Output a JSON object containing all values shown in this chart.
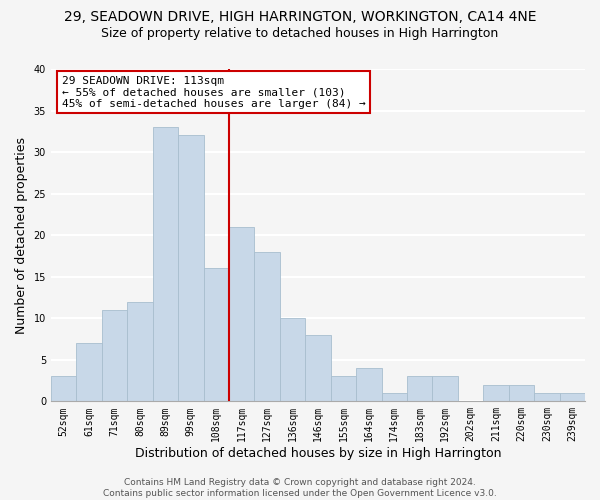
{
  "title": "29, SEADOWN DRIVE, HIGH HARRINGTON, WORKINGTON, CA14 4NE",
  "subtitle": "Size of property relative to detached houses in High Harrington",
  "xlabel": "Distribution of detached houses by size in High Harrington",
  "ylabel": "Number of detached properties",
  "bar_labels": [
    "52sqm",
    "61sqm",
    "71sqm",
    "80sqm",
    "89sqm",
    "99sqm",
    "108sqm",
    "117sqm",
    "127sqm",
    "136sqm",
    "146sqm",
    "155sqm",
    "164sqm",
    "174sqm",
    "183sqm",
    "192sqm",
    "202sqm",
    "211sqm",
    "220sqm",
    "230sqm",
    "239sqm"
  ],
  "bar_values": [
    3,
    7,
    11,
    12,
    33,
    32,
    16,
    21,
    18,
    10,
    8,
    3,
    4,
    1,
    3,
    3,
    0,
    2,
    2,
    1,
    1
  ],
  "bar_color": "#c8d8e8",
  "bar_edge_color": "#a8bece",
  "ylim": [
    0,
    40
  ],
  "reference_line_color": "#cc0000",
  "annotation_title": "29 SEADOWN DRIVE: 113sqm",
  "annotation_line1": "← 55% of detached houses are smaller (103)",
  "annotation_line2": "45% of semi-detached houses are larger (84) →",
  "annotation_box_color": "#ffffff",
  "annotation_box_edge": "#cc0000",
  "footer1": "Contains HM Land Registry data © Crown copyright and database right 2024.",
  "footer2": "Contains public sector information licensed under the Open Government Licence v3.0.",
  "background_color": "#f5f5f5",
  "plot_bg_color": "#f5f5f5",
  "grid_color": "#ffffff",
  "title_fontsize": 10,
  "subtitle_fontsize": 9,
  "axis_label_fontsize": 9,
  "tick_fontsize": 7,
  "annotation_fontsize": 8,
  "footer_fontsize": 6.5,
  "yticks": [
    0,
    5,
    10,
    15,
    20,
    25,
    30,
    35,
    40
  ]
}
